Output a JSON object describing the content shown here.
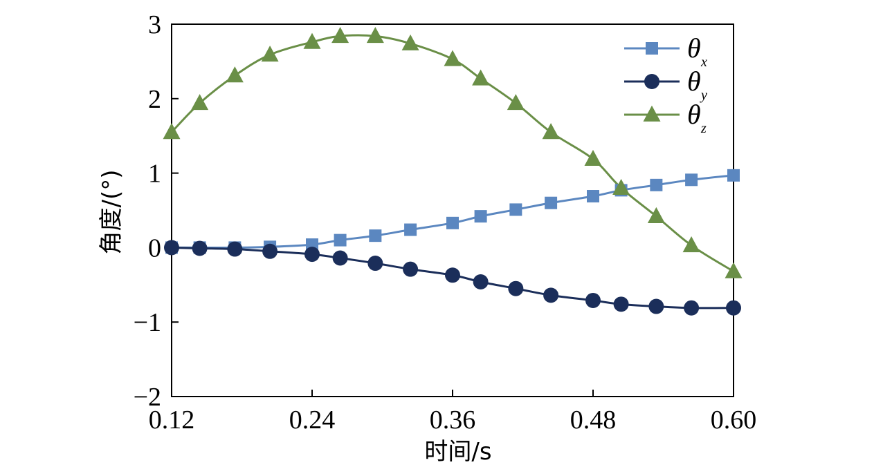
{
  "chart_data": {
    "type": "line",
    "xlabel": "时间/s",
    "ylabel": "角度/(°)",
    "xlim": [
      0.12,
      0.6
    ],
    "ylim": [
      -2,
      3
    ],
    "xticks": [
      "0.12",
      "0.24",
      "0.36",
      "0.48",
      "0.60"
    ],
    "yticks": [
      "3",
      "2",
      "1",
      "0",
      "−1",
      "−2"
    ],
    "grid": false,
    "legend_position": "top-right",
    "x": [
      0.12,
      0.144,
      0.174,
      0.204,
      0.24,
      0.264,
      0.294,
      0.324,
      0.36,
      0.384,
      0.414,
      0.444,
      0.48,
      0.504,
      0.534,
      0.564,
      0.6
    ],
    "series": [
      {
        "name": "θ",
        "subscript": "x",
        "color": "#5b87c0",
        "marker": "square",
        "values": [
          0.0,
          0.0,
          0.0,
          0.01,
          0.04,
          0.1,
          0.16,
          0.24,
          0.33,
          0.42,
          0.51,
          0.6,
          0.69,
          0.77,
          0.84,
          0.91,
          0.97
        ]
      },
      {
        "name": "θ",
        "subscript": "y",
        "color": "#1b2e5a",
        "marker": "circle",
        "values": [
          0.0,
          -0.01,
          -0.02,
          -0.05,
          -0.09,
          -0.14,
          -0.21,
          -0.29,
          -0.37,
          -0.46,
          -0.55,
          -0.64,
          -0.71,
          -0.76,
          -0.79,
          -0.81,
          -0.81
        ]
      },
      {
        "name": "θ",
        "subscript": "z",
        "color": "#6a8f47",
        "marker": "triangle",
        "values": [
          1.55,
          1.94,
          2.31,
          2.59,
          2.76,
          2.84,
          2.84,
          2.74,
          2.53,
          2.27,
          1.94,
          1.55,
          1.19,
          0.8,
          0.42,
          0.03,
          -0.32
        ]
      }
    ]
  }
}
